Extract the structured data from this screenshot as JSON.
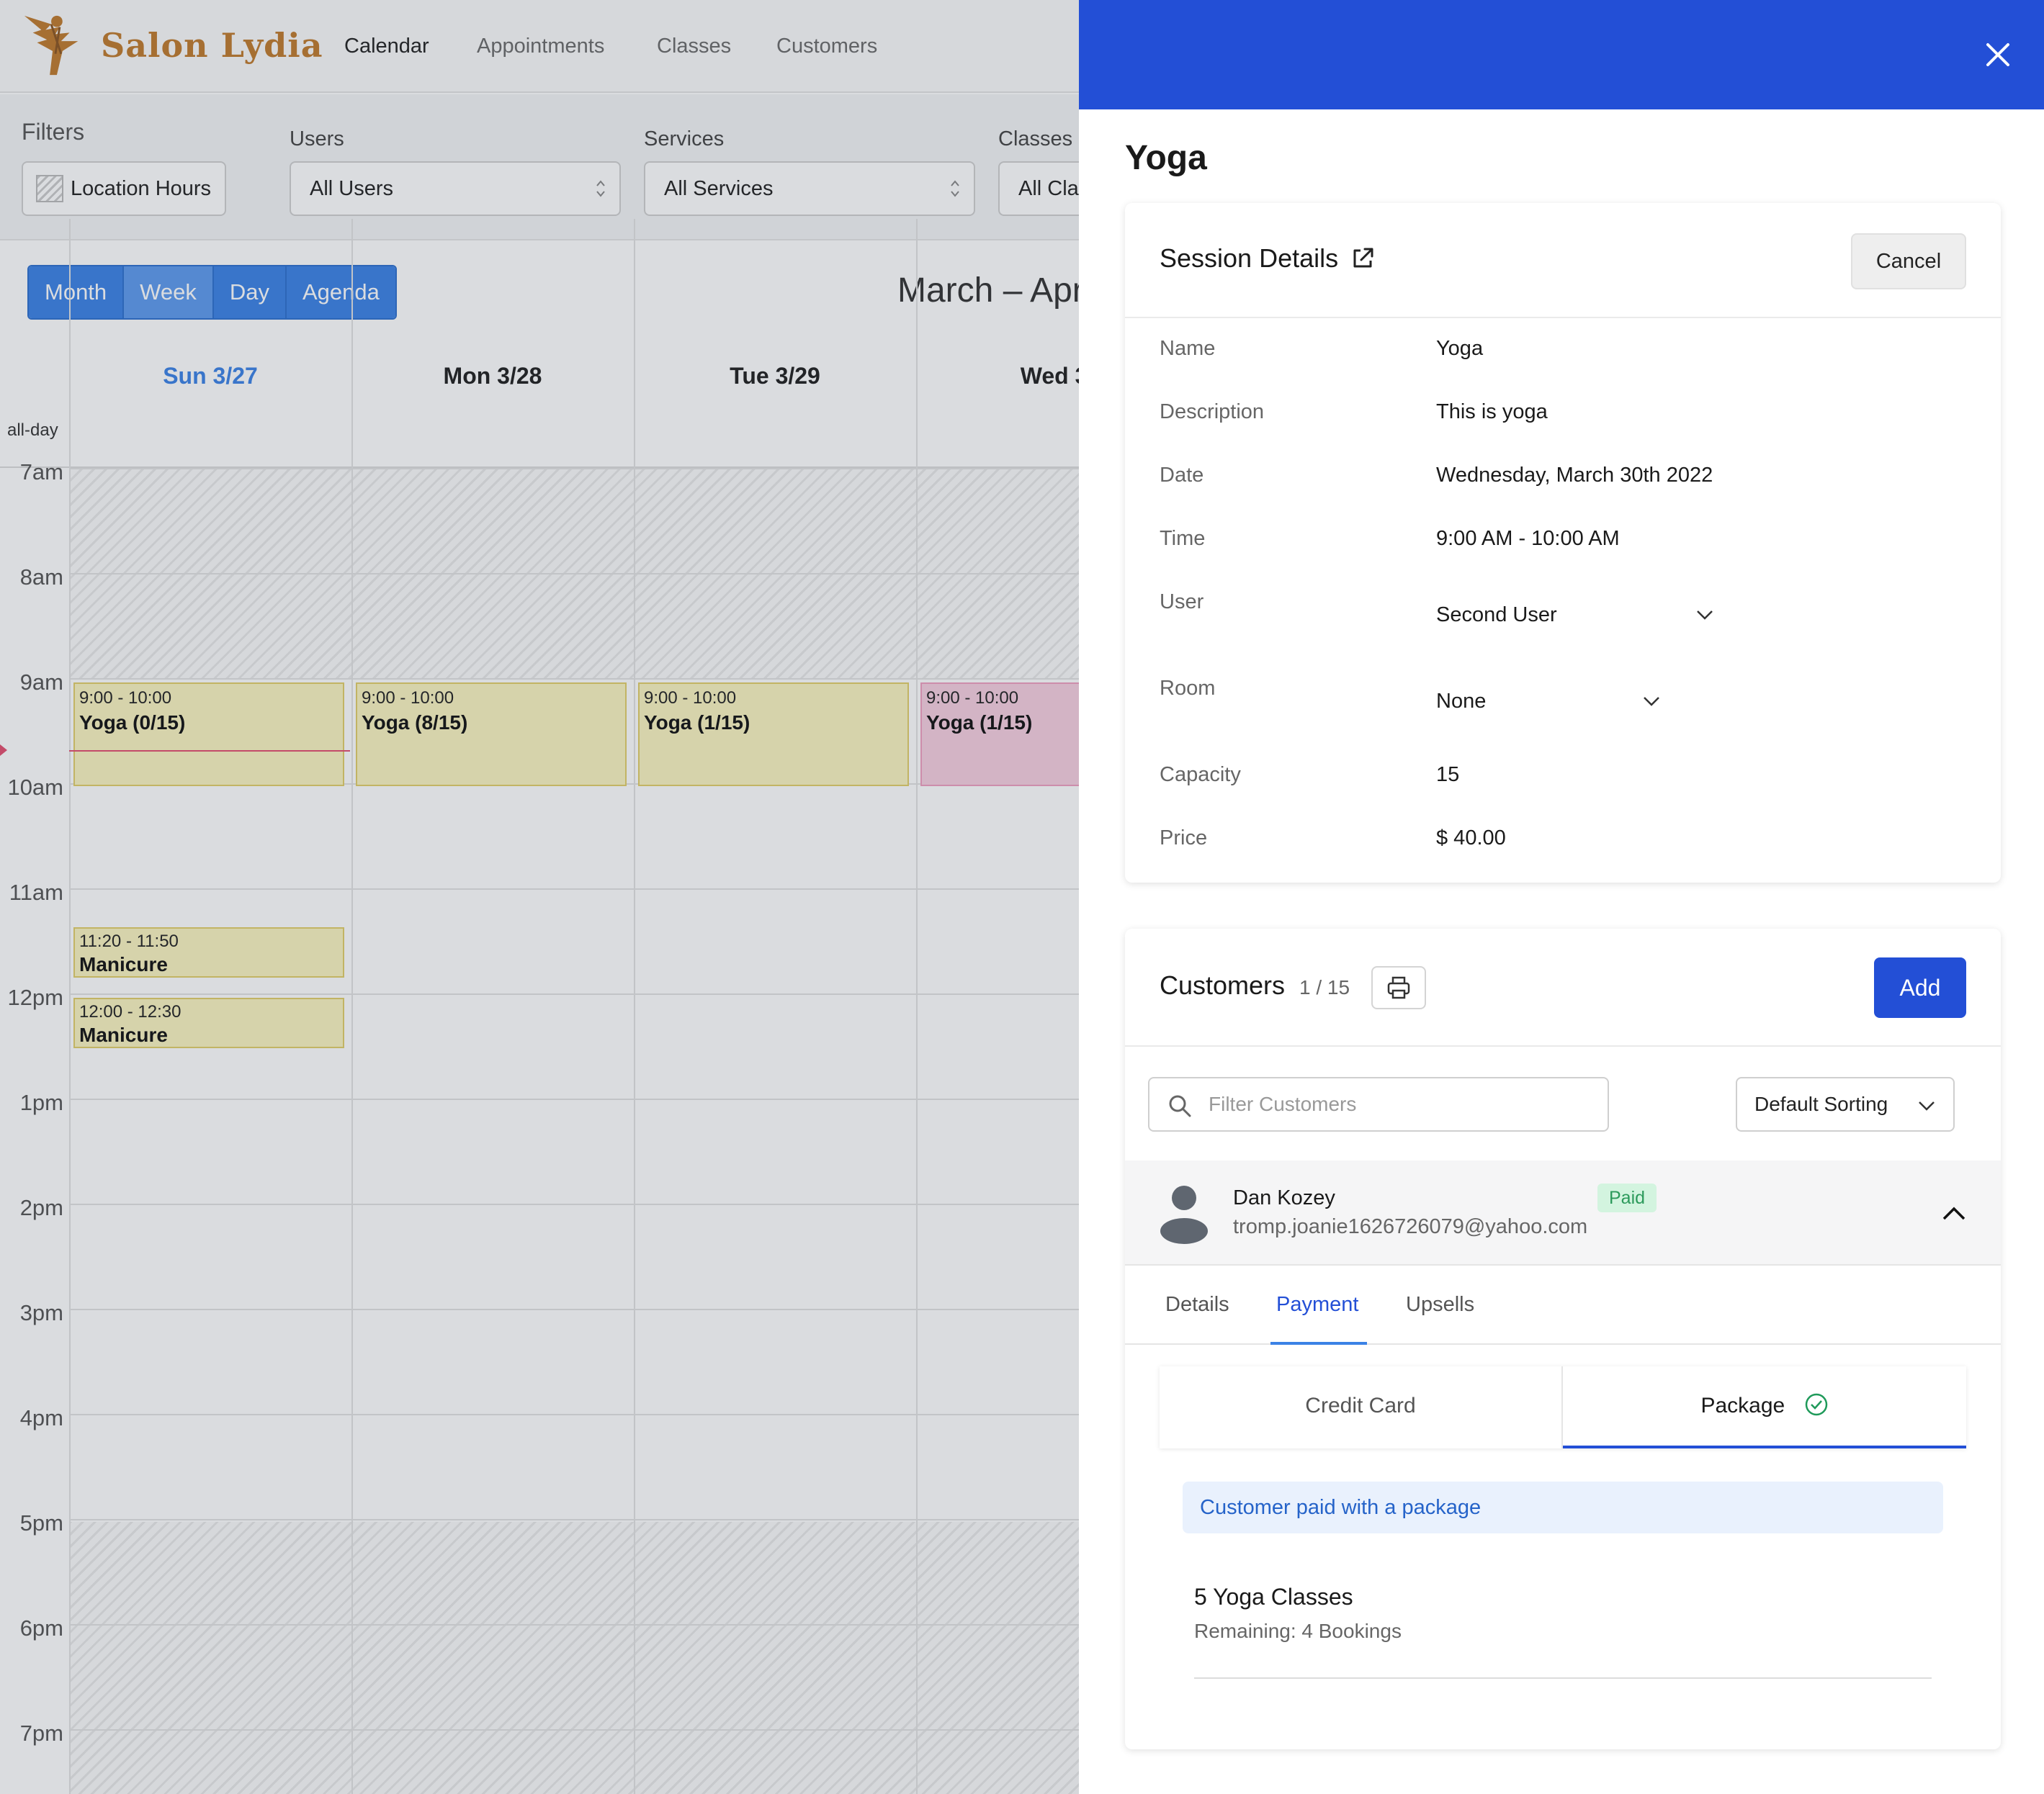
{
  "nav": {
    "brand": "Salon Lydia",
    "links": [
      "Calendar",
      "Appointments",
      "Classes",
      "Customers"
    ]
  },
  "filters": {
    "title": "Filters",
    "location_hours": "Location Hours",
    "users_label": "Users",
    "users_value": "All Users",
    "services_label": "Services",
    "services_value": "All Services",
    "classes_label": "Classes",
    "classes_value": "All Clas"
  },
  "calendar": {
    "views": [
      "Month",
      "Week",
      "Day",
      "Agenda"
    ],
    "active_view": "Week",
    "range_title": "March – Apr",
    "allday_label": "all-day",
    "days": [
      "Sun 3/27",
      "Mon 3/28",
      "Tue 3/29",
      "Wed 3/"
    ],
    "today": "Sun 3/27",
    "hours": [
      "7am",
      "8am",
      "9am",
      "10am",
      "11am",
      "12pm",
      "1pm",
      "2pm",
      "3pm",
      "4pm",
      "5pm",
      "6pm",
      "7pm"
    ],
    "events": [
      {
        "time": "9:00 - 10:00",
        "title": "Yoga (0/15)"
      },
      {
        "time": "9:00 - 10:00",
        "title": "Yoga (8/15)"
      },
      {
        "time": "9:00 - 10:00",
        "title": "Yoga (1/15)"
      },
      {
        "time": "9:00 - 10:00",
        "title": "Yoga (1/15)"
      },
      {
        "time": "11:20 - 11:50",
        "title": "Manicure"
      },
      {
        "time": "12:00 - 12:30",
        "title": "Manicure"
      }
    ]
  },
  "drawer": {
    "title": "Yoga",
    "header_color": "#234fd6",
    "session": {
      "heading": "Session Details",
      "cancel": "Cancel",
      "rows": [
        {
          "label": "Name",
          "value": "Yoga"
        },
        {
          "label": "Description",
          "value": "This is yoga"
        },
        {
          "label": "Date",
          "value": "Wednesday, March 30th 2022"
        },
        {
          "label": "Time",
          "value": "9:00 AM - 10:00 AM"
        },
        {
          "label": "User",
          "value": "Second User"
        },
        {
          "label": "Room",
          "value": "None"
        },
        {
          "label": "Capacity",
          "value": "15"
        },
        {
          "label": "Price",
          "value": "$ 40.00"
        }
      ]
    },
    "customers": {
      "heading": "Customers",
      "count": "1 / 15",
      "add": "Add",
      "filter_placeholder": "Filter Customers",
      "sorting": "Default Sorting",
      "customer": {
        "name": "Dan Kozey",
        "email": "tromp.joanie1626726079@yahoo.com",
        "status": "Paid"
      },
      "tabs": [
        "Details",
        "Payment",
        "Upsells"
      ],
      "active_tab": "Payment",
      "payment_tabs": [
        "Credit Card",
        "Package"
      ],
      "active_payment_tab": "Package",
      "banner": "Customer paid with a package",
      "package_name": "5 Yoga Classes",
      "package_remaining": "Remaining: 4 Bookings"
    }
  }
}
